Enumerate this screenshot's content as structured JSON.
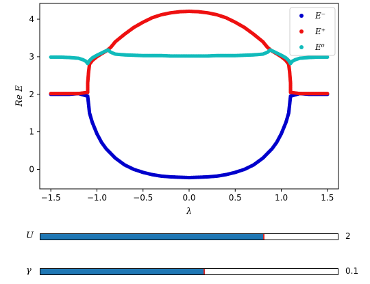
{
  "chart_data": {
    "type": "scatter",
    "title": "",
    "xlabel": "λ",
    "ylabel": "Re E",
    "xlim": [
      -1.62,
      1.62
    ],
    "ylim": [
      -0.52,
      4.42
    ],
    "xticks": [
      "−1.5",
      "−1.0",
      "−0.5",
      "0.0",
      "0.5",
      "1.0",
      "1.5"
    ],
    "yticks": [
      "0",
      "1",
      "2",
      "3",
      "4"
    ],
    "grid": false,
    "legend_position": "top-right",
    "series": [
      {
        "name": "E⁻",
        "color": "#0000cc",
        "points": [
          [
            -1.5,
            2.0
          ],
          [
            -1.4,
            2.0
          ],
          [
            -1.3,
            2.0
          ],
          [
            -1.2,
            2.02
          ],
          [
            -1.1,
            1.95
          ],
          [
            -1.08,
            1.5
          ],
          [
            -1.05,
            1.25
          ],
          [
            -1.0,
            0.95
          ],
          [
            -0.95,
            0.72
          ],
          [
            -0.9,
            0.55
          ],
          [
            -0.8,
            0.3
          ],
          [
            -0.7,
            0.12
          ],
          [
            -0.6,
            0.0
          ],
          [
            -0.5,
            -0.08
          ],
          [
            -0.4,
            -0.14
          ],
          [
            -0.3,
            -0.18
          ],
          [
            -0.2,
            -0.2
          ],
          [
            -0.1,
            -0.21
          ],
          [
            0.0,
            -0.22
          ],
          [
            0.1,
            -0.21
          ],
          [
            0.2,
            -0.2
          ],
          [
            0.3,
            -0.18
          ],
          [
            0.4,
            -0.14
          ],
          [
            0.5,
            -0.08
          ],
          [
            0.6,
            0.0
          ],
          [
            0.7,
            0.12
          ],
          [
            0.8,
            0.3
          ],
          [
            0.9,
            0.55
          ],
          [
            0.95,
            0.72
          ],
          [
            1.0,
            0.95
          ],
          [
            1.05,
            1.25
          ],
          [
            1.08,
            1.5
          ],
          [
            1.1,
            1.95
          ],
          [
            1.2,
            2.02
          ],
          [
            1.3,
            2.0
          ],
          [
            1.4,
            2.0
          ],
          [
            1.5,
            2.0
          ]
        ]
      },
      {
        "name": "E⁺",
        "color": "#ee1111",
        "points": [
          [
            -1.5,
            2.02
          ],
          [
            -1.4,
            2.02
          ],
          [
            -1.3,
            2.02
          ],
          [
            -1.2,
            2.02
          ],
          [
            -1.1,
            2.05
          ],
          [
            -1.1,
            2.3
          ],
          [
            -1.09,
            2.6
          ],
          [
            -1.08,
            2.8
          ],
          [
            -1.05,
            2.9
          ],
          [
            -1.0,
            3.0
          ],
          [
            -0.95,
            3.08
          ],
          [
            -0.9,
            3.15
          ],
          [
            -0.85,
            3.25
          ],
          [
            -0.8,
            3.4
          ],
          [
            -0.7,
            3.6
          ],
          [
            -0.6,
            3.78
          ],
          [
            -0.5,
            3.92
          ],
          [
            -0.4,
            4.04
          ],
          [
            -0.3,
            4.12
          ],
          [
            -0.2,
            4.17
          ],
          [
            -0.1,
            4.2
          ],
          [
            0.0,
            4.21
          ],
          [
            0.1,
            4.2
          ],
          [
            0.2,
            4.17
          ],
          [
            0.3,
            4.12
          ],
          [
            0.4,
            4.04
          ],
          [
            0.5,
            3.92
          ],
          [
            0.6,
            3.78
          ],
          [
            0.7,
            3.6
          ],
          [
            0.8,
            3.4
          ],
          [
            0.85,
            3.25
          ],
          [
            0.9,
            3.15
          ],
          [
            0.95,
            3.08
          ],
          [
            1.0,
            3.0
          ],
          [
            1.05,
            2.9
          ],
          [
            1.08,
            2.8
          ],
          [
            1.09,
            2.6
          ],
          [
            1.1,
            2.3
          ],
          [
            1.1,
            2.05
          ],
          [
            1.2,
            2.02
          ],
          [
            1.3,
            2.02
          ],
          [
            1.4,
            2.02
          ],
          [
            1.5,
            2.02
          ]
        ]
      },
      {
        "name": "E⁰",
        "color": "#11bbbb",
        "points": [
          [
            -1.5,
            2.99
          ],
          [
            -1.4,
            2.99
          ],
          [
            -1.3,
            2.98
          ],
          [
            -1.2,
            2.96
          ],
          [
            -1.15,
            2.92
          ],
          [
            -1.12,
            2.88
          ],
          [
            -1.1,
            2.82
          ],
          [
            -1.08,
            2.9
          ],
          [
            -1.05,
            2.97
          ],
          [
            -1.0,
            3.04
          ],
          [
            -0.95,
            3.1
          ],
          [
            -0.9,
            3.16
          ],
          [
            -0.88,
            3.18
          ],
          [
            -0.85,
            3.12
          ],
          [
            -0.8,
            3.07
          ],
          [
            -0.7,
            3.05
          ],
          [
            -0.6,
            3.04
          ],
          [
            -0.5,
            3.03
          ],
          [
            -0.4,
            3.03
          ],
          [
            -0.3,
            3.03
          ],
          [
            -0.2,
            3.02
          ],
          [
            -0.1,
            3.02
          ],
          [
            0.0,
            3.02
          ],
          [
            0.1,
            3.02
          ],
          [
            0.2,
            3.02
          ],
          [
            0.3,
            3.03
          ],
          [
            0.4,
            3.03
          ],
          [
            0.5,
            3.03
          ],
          [
            0.6,
            3.04
          ],
          [
            0.7,
            3.05
          ],
          [
            0.8,
            3.07
          ],
          [
            0.85,
            3.12
          ],
          [
            0.88,
            3.18
          ],
          [
            0.9,
            3.16
          ],
          [
            0.95,
            3.1
          ],
          [
            1.0,
            3.04
          ],
          [
            1.05,
            2.97
          ],
          [
            1.08,
            2.9
          ],
          [
            1.1,
            2.82
          ],
          [
            1.12,
            2.88
          ],
          [
            1.15,
            2.92
          ],
          [
            1.2,
            2.96
          ],
          [
            1.3,
            2.98
          ],
          [
            1.4,
            2.99
          ],
          [
            1.5,
            2.99
          ]
        ]
      }
    ]
  },
  "sliders": [
    {
      "label": "U",
      "value": "2",
      "fraction": 0.75
    },
    {
      "label": "γ",
      "value": "0.1",
      "fraction": 0.55
    }
  ]
}
